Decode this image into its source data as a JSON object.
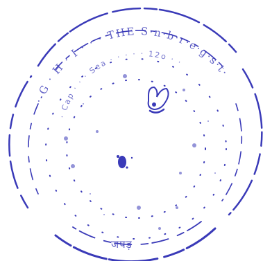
{
  "stamp": {
    "outer_text": "· G · H · I · · · THE S·n·b·r·e·g·s·t·",
    "inner_text": "· Cap · · · Sea · · · · · 12o · ·",
    "bottom_text": "जपड़",
    "ink_color": "#3a3ab8",
    "emblem_icon": "crown-emblem-icon"
  }
}
